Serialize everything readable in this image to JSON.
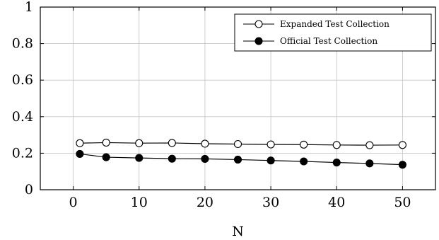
{
  "chart_data": {
    "type": "line",
    "title": "",
    "xlabel": "N",
    "ylabel": "",
    "xlim": [
      -5,
      55
    ],
    "ylim": [
      0,
      1
    ],
    "x_ticks": [
      0,
      10,
      20,
      30,
      40,
      50
    ],
    "y_ticks": [
      0,
      0.2,
      0.4,
      0.6,
      0.8,
      1
    ],
    "x_tick_labels": [
      "0",
      "10",
      "20",
      "30",
      "40",
      "50"
    ],
    "y_tick_labels": [
      "0",
      "0.2",
      "0.4",
      "0.6",
      "0.8",
      "1"
    ],
    "grid": true,
    "legend_position": "top-right",
    "x": [
      1,
      5,
      10,
      15,
      20,
      25,
      30,
      35,
      40,
      45,
      50
    ],
    "series": [
      {
        "name": "Expanded Test Collection",
        "marker": "open-circle",
        "color": "#000000",
        "values": [
          0.255,
          0.258,
          0.255,
          0.256,
          0.252,
          0.25,
          0.248,
          0.247,
          0.245,
          0.244,
          0.245
        ]
      },
      {
        "name": "Official Test Collection",
        "marker": "filled-circle",
        "color": "#000000",
        "values": [
          0.196,
          0.178,
          0.174,
          0.17,
          0.169,
          0.165,
          0.16,
          0.155,
          0.149,
          0.144,
          0.137
        ]
      }
    ]
  }
}
